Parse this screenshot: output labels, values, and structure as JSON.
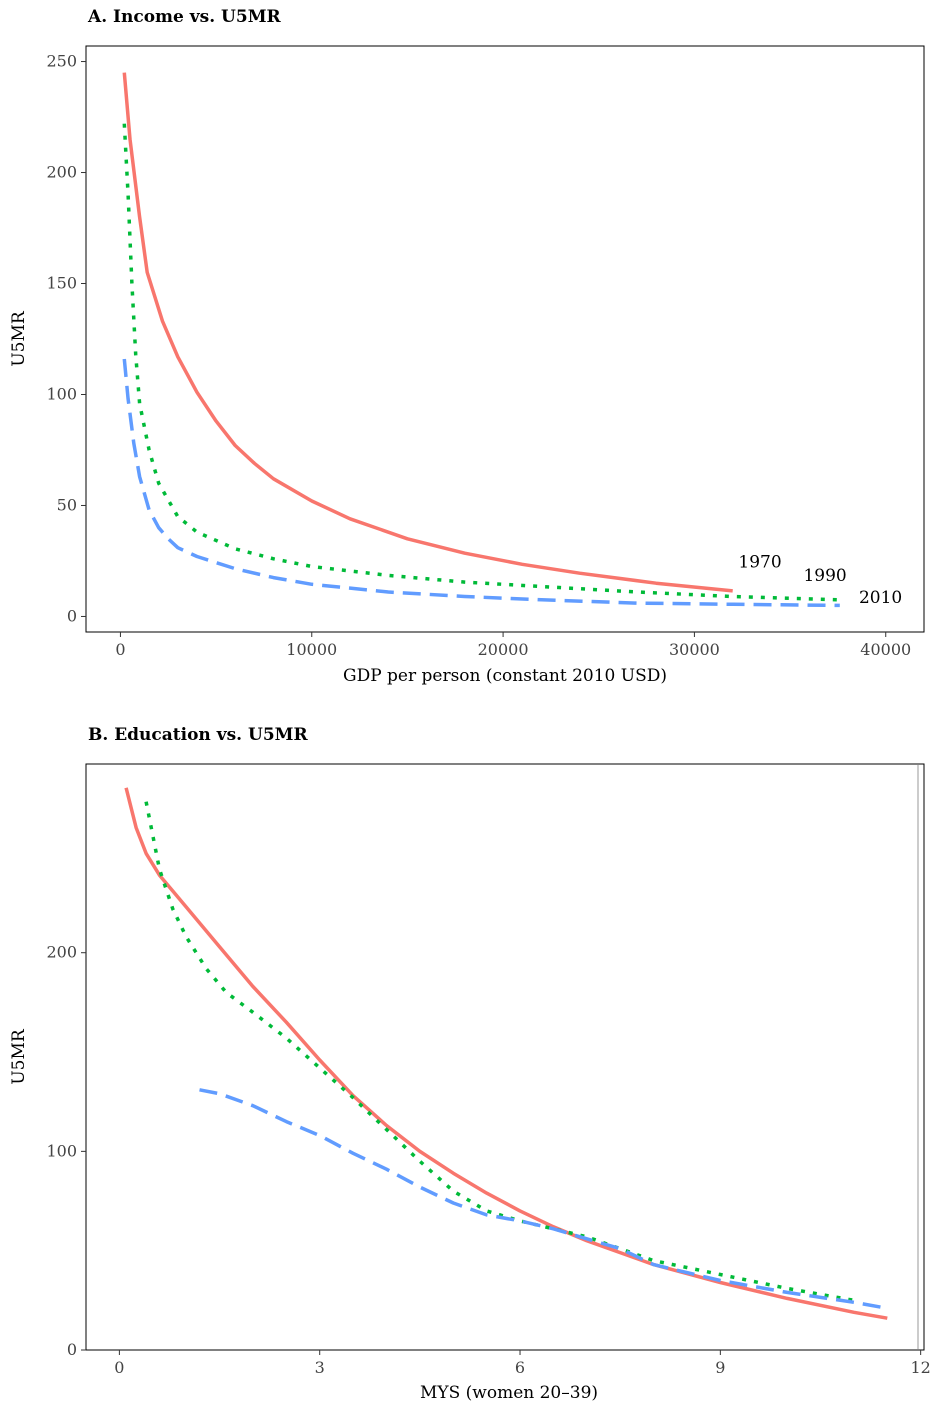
{
  "chart_data": [
    {
      "type": "line",
      "title": "A. Income vs. U5MR",
      "xlabel": "GDP per person (constant 2010 USD)",
      "ylabel": "U5MR",
      "xlim": [
        -1800,
        42000
      ],
      "ylim": [
        -7,
        257
      ],
      "xticks": [
        0,
        10000,
        20000,
        30000,
        40000
      ],
      "yticks": [
        0,
        50,
        100,
        150,
        200,
        250
      ],
      "grid": false,
      "series": [
        {
          "name": "1970",
          "color": "#F8766D",
          "dash": "solid",
          "label_x": 32300,
          "label_y": 22,
          "x": [
            200,
            500,
            1000,
            1400,
            2200,
            3000,
            4000,
            5000,
            6000,
            7000,
            8000,
            10000,
            12000,
            15000,
            18000,
            21000,
            24000,
            28000,
            32000
          ],
          "y": [
            245,
            215,
            180,
            155,
            133,
            117,
            101,
            88,
            77,
            69,
            62,
            52,
            44,
            35,
            28.5,
            23.5,
            19.5,
            15,
            11.5
          ]
        },
        {
          "name": "1990",
          "color": "#00BA38",
          "dash": "dotted",
          "label_x": 35700,
          "label_y": 16,
          "x": [
            200,
            400,
            600,
            800,
            1000,
            1500,
            2000,
            3000,
            4000,
            6000,
            8000,
            10000,
            14000,
            18000,
            22000,
            27000,
            32000,
            37600
          ],
          "y": [
            222,
            190,
            150,
            118,
            96,
            75,
            60,
            45,
            38,
            30.5,
            26,
            22.5,
            18.5,
            15.5,
            13.5,
            11,
            9,
            7.5
          ]
        },
        {
          "name": "2010",
          "color": "#619CFF",
          "dash": "dashed",
          "label_x": 38600,
          "label_y": 6,
          "x": [
            200,
            400,
            700,
            1000,
            1500,
            2000,
            2500,
            3000,
            4000,
            6000,
            8000,
            10000,
            14000,
            18000,
            22000,
            27000,
            32000,
            37600
          ],
          "y": [
            116,
            98,
            78,
            63,
            48,
            40,
            35,
            31,
            27,
            21.5,
            17.5,
            14.5,
            11,
            9,
            7.5,
            6,
            5.5,
            5
          ]
        }
      ]
    },
    {
      "type": "line",
      "title": "B. Education vs. U5MR",
      "xlabel": "MYS (women 20–39)",
      "ylabel": "U5MR",
      "xlim": [
        -0.5,
        12.05
      ],
      "ylim": [
        0,
        295
      ],
      "xticks": [
        0,
        3,
        6,
        9,
        12
      ],
      "yticks": [
        0,
        100,
        200
      ],
      "grid": false,
      "series": [
        {
          "name": "1970",
          "color": "#F8766D",
          "dash": "solid",
          "x": [
            0.1,
            0.25,
            0.4,
            0.6,
            1.0,
            1.5,
            2.0,
            2.5,
            3.0,
            3.5,
            4.0,
            4.5,
            5.0,
            5.5,
            6.0,
            6.5,
            7.0,
            8.0,
            9.0,
            10.0,
            11.0,
            11.5
          ],
          "y": [
            283,
            263,
            250,
            239,
            223,
            203,
            183,
            165,
            146,
            128,
            113,
            100,
            89,
            79,
            70,
            62,
            55,
            43,
            34,
            26,
            19,
            16
          ]
        },
        {
          "name": "1990",
          "color": "#00BA38",
          "dash": "dotted",
          "x": [
            0.4,
            0.6,
            0.8,
            1.0,
            1.3,
            1.6,
            2.0,
            2.5,
            3.0,
            3.5,
            4.0,
            4.5,
            5.0,
            5.5,
            6.0,
            7.0,
            8.0,
            9.0,
            10.0,
            11.0
          ],
          "y": [
            276,
            242,
            222,
            208,
            192,
            180,
            170,
            157,
            142,
            127,
            111,
            95,
            80,
            70,
            65,
            57,
            45,
            38,
            31,
            25
          ]
        },
        {
          "name": "2010",
          "color": "#619CFF",
          "dash": "dashed",
          "x": [
            1.2,
            1.5,
            2.0,
            2.5,
            3.0,
            3.5,
            4.0,
            4.5,
            5.0,
            5.5,
            6.0,
            6.5,
            7.0,
            7.5,
            8.0,
            9.0,
            10.0,
            11.0,
            11.5
          ],
          "y": [
            131,
            129,
            123,
            115,
            108,
            99,
            91,
            82,
            74,
            68,
            65,
            61,
            56,
            51,
            43,
            35,
            29,
            24,
            21
          ]
        }
      ]
    }
  ]
}
